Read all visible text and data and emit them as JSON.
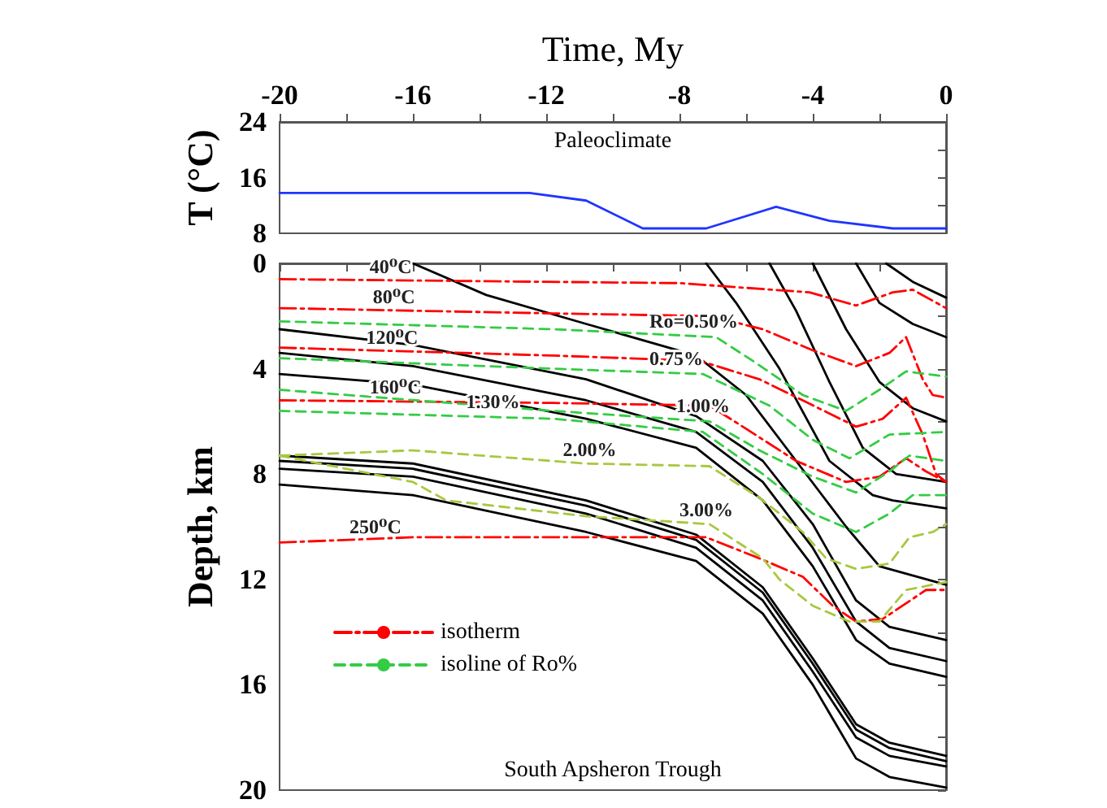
{
  "chart_data": [
    {
      "type": "line",
      "xlabel": "Time, My",
      "ylabel": "T (°C)",
      "xlim": [
        -20,
        0
      ],
      "xticks": [
        -20,
        {
          "value": -18,
          "label": null
        },
        -16,
        {
          "value": -14,
          "label": null
        },
        -12,
        {
          "value": -10,
          "label": null
        },
        -8,
        {
          "value": -6,
          "label": null
        },
        -4,
        {
          "value": -2,
          "label": null
        },
        0
      ],
      "ylim": [
        8,
        24
      ],
      "yticks": [
        8,
        {
          "value": 12,
          "label": null
        },
        16,
        {
          "value": 20,
          "label": null
        },
        24
      ],
      "grid": false,
      "legend": false,
      "marker": "none",
      "annotations": [
        "Paleoclimate"
      ],
      "series": [
        {
          "color": "#1f35ff",
          "line_style": "solid",
          "x": [
            -20,
            -12.5,
            -10.8,
            -9.1,
            -7.2,
            -5.1,
            -3.5,
            -1.6,
            0
          ],
          "values": [
            13.8,
            13.8,
            12.7,
            8.7,
            8.7,
            11.8,
            9.8,
            8.7,
            8.7
          ]
        }
      ]
    },
    {
      "type": "line",
      "ylabel": "Depth, km",
      "xlim": [
        -20,
        0
      ],
      "xticks": [
        -20,
        -18,
        -16,
        -14,
        -12,
        -10,
        -8,
        -6,
        -4,
        -2,
        0
      ],
      "ylim": [
        20,
        0
      ],
      "yticks": [
        0,
        {
          "value": 2,
          "label": null
        },
        4,
        {
          "value": 6,
          "label": null
        },
        8,
        {
          "value": 10,
          "label": null
        },
        12,
        {
          "value": 14,
          "label": null
        },
        16,
        {
          "value": 18,
          "label": null
        },
        20
      ],
      "tick_labels": "y",
      "grid": false,
      "legend": "bottom left",
      "marker": "none",
      "annotations": [
        {
          "text": "40⁰C",
          "x": -17.3,
          "y": 0.62
        },
        {
          "text": "80⁰C",
          "x": -17.2,
          "y": 1.77
        },
        {
          "text": "120⁰C",
          "x": -17.4,
          "y": 3.3
        },
        {
          "text": "160⁰C",
          "x": -17.3,
          "y": 5.2
        },
        {
          "text": "250⁰C",
          "x": -17.9,
          "y": 10.5
        },
        {
          "text": "Ro=0.50%",
          "x": -8.9,
          "y": 2.7
        },
        {
          "text": "0.75%",
          "x": -8.9,
          "y": 4.1
        },
        {
          "text": "1.00%",
          "x": -8.1,
          "y": 5.9
        },
        {
          "text": "1.30%",
          "x": -14.4,
          "y": 5.75
        },
        {
          "text": "2.00%",
          "x": -11.5,
          "y": 7.55
        },
        {
          "text": "3.00%",
          "x": -8.0,
          "y": 9.85
        },
        "South Apsheron Trough"
      ],
      "series": [
        {
          "color": "#000000",
          "line_style": "solid",
          "x": [
            -16,
            -13.8,
            -10.8,
            -7.5,
            -6,
            -4.5,
            -3,
            -2,
            0
          ],
          "values": [
            0,
            1.2,
            2.3,
            3.5,
            5,
            7.5,
            10,
            11.5,
            12.2
          ]
        },
        {
          "color": "#000000",
          "line_style": "solid",
          "x": [
            -20,
            -16,
            -10.8,
            -7.5,
            -5.5,
            -4,
            -2.7,
            -1.7,
            0
          ],
          "values": [
            2.5,
            3.1,
            4.4,
            5.8,
            7.5,
            9.9,
            12.8,
            13.8,
            14.3
          ]
        },
        {
          "color": "#000000",
          "line_style": "solid",
          "x": [
            -20,
            -16,
            -10.8,
            -7.5,
            -5.5,
            -4,
            -2.7,
            -1.7,
            0
          ],
          "values": [
            3.4,
            3.9,
            5.2,
            6.4,
            8.3,
            10.8,
            13.6,
            14.6,
            15.1
          ]
        },
        {
          "color": "#000000",
          "line_style": "solid",
          "x": [
            -20,
            -16,
            -10.8,
            -7.5,
            -5.5,
            -4,
            -2.7,
            -1.7,
            0
          ],
          "values": [
            4.2,
            4.6,
            5.9,
            7.0,
            9.0,
            11.5,
            14.3,
            15.2,
            15.7
          ]
        },
        {
          "color": "#000000",
          "line_style": "solid",
          "x": [
            -20,
            -16,
            -10.8,
            -7.5,
            -5.5,
            -4,
            -2.7,
            -1.7,
            0
          ],
          "values": [
            7.3,
            7.6,
            9.0,
            10.3,
            12.3,
            15.0,
            17.5,
            18.2,
            18.7
          ]
        },
        {
          "color": "#000000",
          "line_style": "solid",
          "x": [
            -20,
            -16,
            -10.8,
            -7.5,
            -5.5,
            -4,
            -2.7,
            -1.7,
            0
          ],
          "values": [
            7.5,
            7.8,
            9.2,
            10.5,
            12.5,
            15.2,
            17.7,
            18.4,
            18.9
          ]
        },
        {
          "color": "#000000",
          "line_style": "solid",
          "x": [
            -20,
            -16,
            -10.8,
            -7.5,
            -5.5,
            -4,
            -2.7,
            -1.7,
            0
          ],
          "values": [
            7.8,
            8.1,
            9.5,
            10.8,
            12.8,
            15.5,
            18.0,
            18.7,
            19.1
          ]
        },
        {
          "color": "#000000",
          "line_style": "solid",
          "x": [
            -20,
            -16,
            -10.8,
            -7.5,
            -5.5,
            -4,
            -2.7,
            -1.7,
            0
          ],
          "values": [
            8.4,
            8.8,
            10.2,
            11.3,
            13.3,
            16.0,
            18.8,
            19.5,
            19.9
          ]
        },
        {
          "color": "#000000",
          "line_style": "solid",
          "x": [
            -1.8,
            -1,
            0
          ],
          "values": [
            0,
            0.7,
            1.3
          ]
        },
        {
          "color": "#000000",
          "line_style": "solid",
          "x": [
            -2.7,
            -2,
            -1,
            0
          ],
          "values": [
            0,
            1.5,
            2.3,
            2.8
          ]
        },
        {
          "color": "#000000",
          "line_style": "solid",
          "x": [
            -4,
            -3,
            -2,
            -1,
            0
          ],
          "values": [
            0,
            2.5,
            4.5,
            5.5,
            6.0
          ]
        },
        {
          "color": "#000000",
          "line_style": "solid",
          "x": [
            -5.3,
            -4.5,
            -3.5,
            -2.5,
            -1.5,
            0
          ],
          "values": [
            0,
            1.8,
            4.5,
            7,
            8,
            8.3
          ]
        },
        {
          "color": "#000000",
          "line_style": "solid",
          "x": [
            -7.2,
            -6.3,
            -5,
            -3.5,
            -2.2,
            -1.6,
            0
          ],
          "values": [
            0,
            1.5,
            4,
            7.5,
            8.8,
            9.0,
            9.3
          ]
        },
        {
          "name": "isotherm",
          "color": "#ff0000",
          "line_style": "dashdot",
          "x": [
            -20,
            -12,
            -8,
            -4.1,
            -2.7,
            -1.6,
            -1,
            0
          ],
          "values": [
            0.6,
            0.7,
            0.75,
            1.1,
            1.6,
            1.1,
            1.0,
            1.7
          ]
        },
        {
          "color": "#ff0000",
          "line_style": "dashdot",
          "x": [
            -20,
            -11.8,
            -7.1,
            -5.5,
            -4,
            -2.7,
            -1.7,
            -1.2,
            -0.7,
            -0.4,
            0
          ],
          "values": [
            1.7,
            1.9,
            2.0,
            2.5,
            3.3,
            3.9,
            3.4,
            2.8,
            4.4,
            5.0,
            5.1
          ]
        },
        {
          "color": "#ff0000",
          "line_style": "dashdot",
          "x": [
            -20,
            -11.8,
            -7.4,
            -5.6,
            -4.3,
            -2.7,
            -1.9,
            -1.2,
            -0.7,
            -0.3,
            0
          ],
          "values": [
            3.2,
            3.5,
            3.7,
            4.4,
            5.2,
            6.2,
            5.9,
            5.1,
            6.5,
            8.0,
            8.3
          ]
        },
        {
          "color": "#ff0000",
          "line_style": "dashdot",
          "x": [
            -20,
            -11.8,
            -7.1,
            -6.1,
            -4.5,
            -3,
            -2,
            -1.2,
            -0.6,
            0
          ],
          "values": [
            5.2,
            5.3,
            5.4,
            6.2,
            7.5,
            8.3,
            8.1,
            7.4,
            7.9,
            8.3
          ]
        },
        {
          "color": "#ff0000",
          "line_style": "dashdot",
          "x": [
            -20,
            -16,
            -12,
            -7.2,
            -5.6,
            -4.3,
            -3.4,
            -2.7,
            -1.9,
            -0.6,
            0
          ],
          "values": [
            10.6,
            10.4,
            10.4,
            10.4,
            11.2,
            11.9,
            13.0,
            13.6,
            13.5,
            12.4,
            12.4
          ]
        },
        {
          "name": "isoline of Ro%",
          "color": "#33cc44",
          "line_style": "dashed",
          "x": [
            -20,
            -11.8,
            -6.9,
            -5.8,
            -4.3,
            -3,
            -2,
            -1.2,
            0
          ],
          "values": [
            2.2,
            2.5,
            2.8,
            3.7,
            5.0,
            5.6,
            4.8,
            4.1,
            4.3
          ]
        },
        {
          "color": "#33cc44",
          "line_style": "dashed",
          "x": [
            -20,
            -11.8,
            -7.3,
            -5.3,
            -4,
            -2.9,
            -1.7,
            0
          ],
          "values": [
            3.6,
            4.0,
            4.2,
            5.4,
            6.7,
            7.4,
            6.5,
            6.4
          ]
        },
        {
          "color": "#33cc44",
          "line_style": "dashed",
          "x": [
            -20,
            -11.8,
            -7.1,
            -5.6,
            -4,
            -2.7,
            -1.7,
            -1.1,
            0
          ],
          "values": [
            4.8,
            5.6,
            6.0,
            7.1,
            8.1,
            8.7,
            7.9,
            7.3,
            7.5
          ]
        },
        {
          "color": "#33cc44",
          "line_style": "dashed",
          "x": [
            -20,
            -11.8,
            -7.3,
            -5.5,
            -4,
            -2.7,
            -1.7,
            -1,
            0
          ],
          "values": [
            5.6,
            5.9,
            6.4,
            8.0,
            9.5,
            10.2,
            9.5,
            8.8,
            8.8
          ]
        },
        {
          "color": "#a8c840",
          "line_style": "dashed",
          "x": [
            -20,
            -16,
            -10.8,
            -7.1,
            -5.6,
            -4.3,
            -3.6,
            -2.7,
            -1.7,
            -1.1,
            -0.4,
            0
          ],
          "values": [
            7.3,
            7.1,
            7.6,
            7.7,
            8.9,
            10.2,
            11.2,
            11.6,
            11.4,
            10.4,
            10.2,
            9.9
          ]
        },
        {
          "color": "#a8c840",
          "line_style": "dashed",
          "x": [
            -20,
            -16,
            -15,
            -10.8,
            -7.1,
            -5.5,
            -5,
            -4,
            -2.9,
            -2,
            -1.2,
            0
          ],
          "values": [
            7.3,
            8.3,
            9.0,
            9.6,
            9.9,
            11.2,
            12.0,
            13.0,
            13.6,
            13.6,
            12.4,
            12.1
          ]
        }
      ]
    }
  ]
}
